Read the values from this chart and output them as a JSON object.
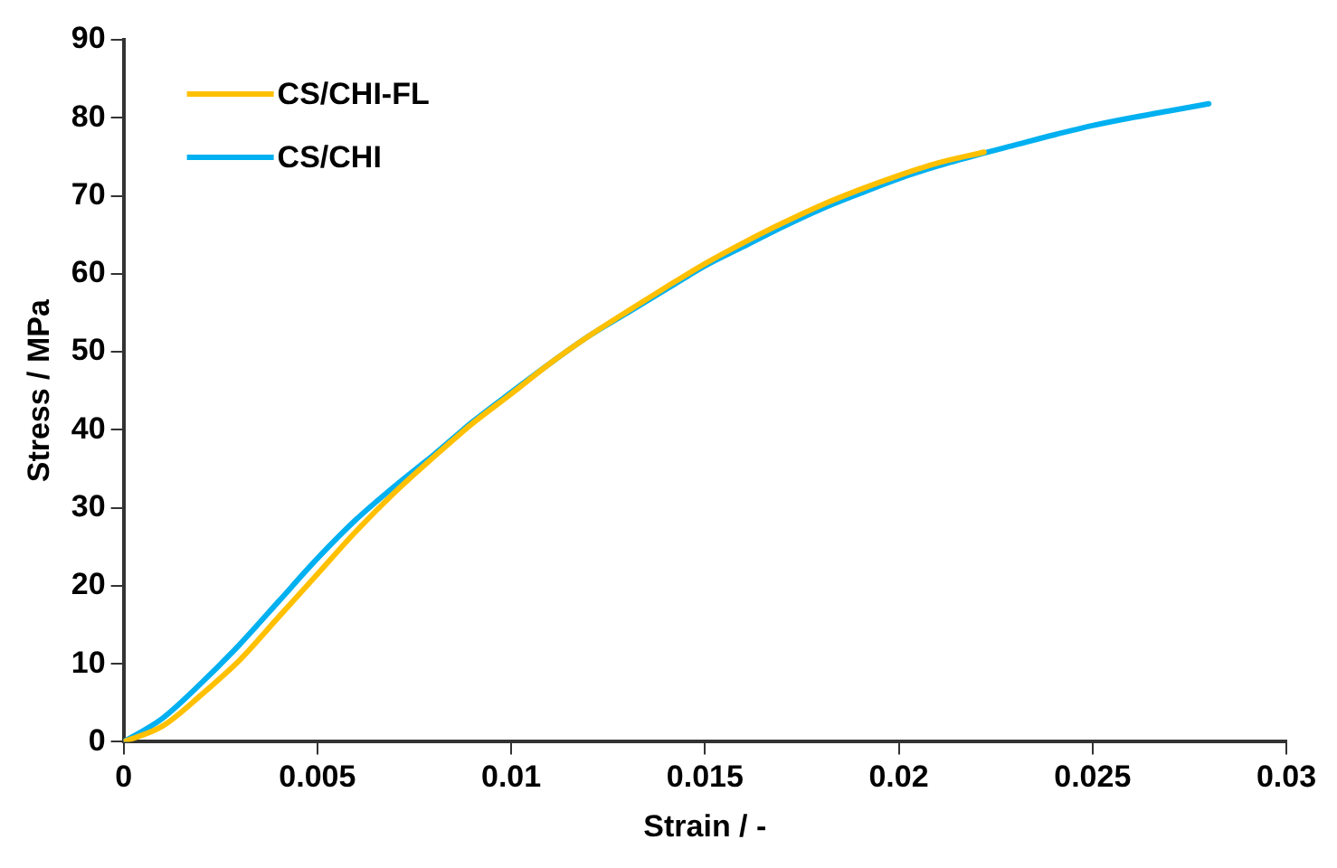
{
  "chart_data": {
    "type": "line",
    "xlabel": "Strain / -",
    "ylabel": "Stress / MPa",
    "xlim": [
      0,
      0.03
    ],
    "xticks": [
      0,
      0.005,
      0.01,
      0.015,
      0.02,
      0.025,
      0.03
    ],
    "ylim": [
      0,
      90
    ],
    "yticks": [
      0,
      10,
      20,
      30,
      40,
      50,
      60,
      70,
      80,
      90
    ],
    "grid": false,
    "legend": "top left",
    "marker": "none",
    "line_style": "solid",
    "series": [
      {
        "name": "CS/CHI-FL",
        "color": "#ffc000",
        "x": [
          0,
          0.001,
          0.002,
          0.003,
          0.004,
          0.005,
          0.006,
          0.007,
          0.008,
          0.009,
          0.01,
          0.011,
          0.012,
          0.013,
          0.014,
          0.015,
          0.016,
          0.017,
          0.018,
          0.019,
          0.02,
          0.021,
          0.0222
        ],
        "values": [
          0,
          2,
          6,
          10.5,
          16,
          21.5,
          27,
          32,
          36.5,
          40.8,
          44.6,
          48.5,
          52,
          55.2,
          58.3,
          61.3,
          64,
          66.5,
          68.8,
          70.8,
          72.6,
          74.2,
          75.6
        ]
      },
      {
        "name": "CS/CHI",
        "color": "#00b0f0",
        "x": [
          0,
          0.001,
          0.002,
          0.003,
          0.004,
          0.005,
          0.006,
          0.007,
          0.008,
          0.009,
          0.01,
          0.011,
          0.012,
          0.013,
          0.014,
          0.015,
          0.016,
          0.017,
          0.018,
          0.019,
          0.02,
          0.021,
          0.022,
          0.023,
          0.024,
          0.025,
          0.026,
          0.027,
          0.028
        ],
        "values": [
          0,
          3,
          7.5,
          12.5,
          18,
          23.5,
          28.5,
          32.8,
          36.8,
          41,
          44.8,
          48.5,
          52,
          55,
          58,
          61,
          63.5,
          66,
          68.3,
          70.3,
          72.2,
          73.8,
          75.2,
          76.5,
          77.8,
          79,
          80,
          80.9,
          81.8
        ]
      }
    ]
  }
}
